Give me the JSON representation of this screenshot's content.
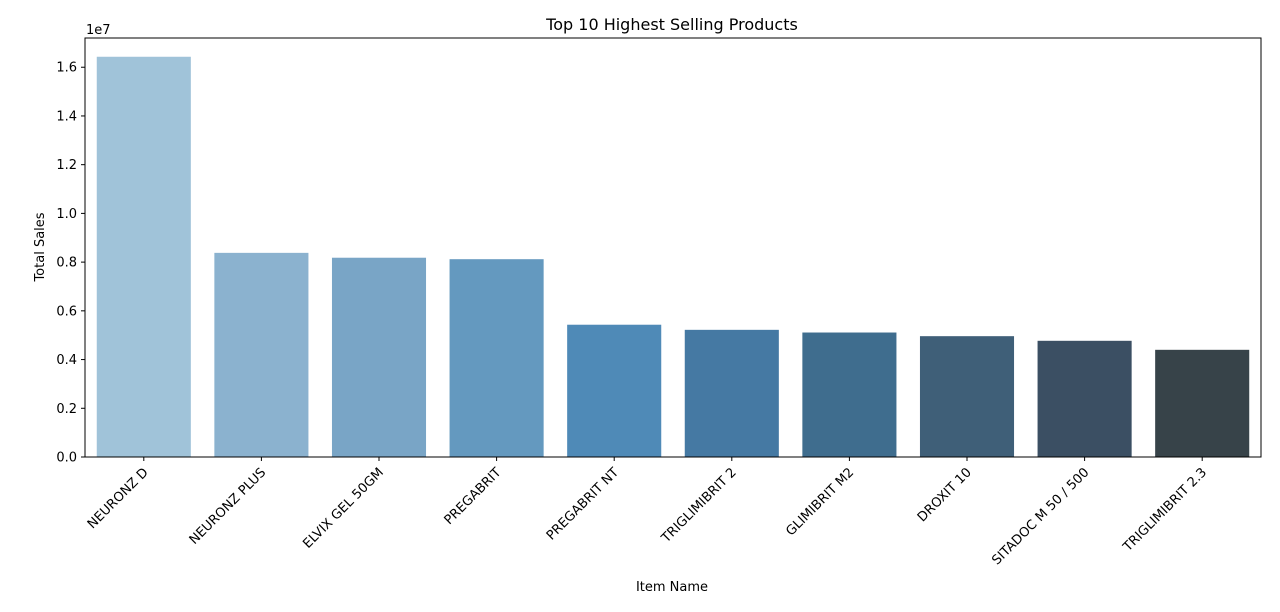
{
  "chart_data": {
    "type": "bar",
    "title": "Top 10 Highest Selling Products",
    "xlabel": "Item Name",
    "ylabel": "Total Sales",
    "y_scale_note": "1e7",
    "y_multiplier": 10000000,
    "ylim": [
      0,
      1.72
    ],
    "yticks": [
      0.0,
      0.2,
      0.4,
      0.6,
      0.8,
      1.0,
      1.2,
      1.4,
      1.6
    ],
    "ytick_labels": [
      "0.0",
      "0.2",
      "0.4",
      "0.6",
      "0.8",
      "1.0",
      "1.2",
      "1.4",
      "1.6"
    ],
    "categories": [
      "NEURONZ D",
      "NEURONZ PLUS",
      "ELVIX GEL 50GM",
      "PREGABRIT",
      "PREGABRIT NT",
      "TRIGLIMIBRIT 2",
      "GLIMIBRIT M2",
      "DROXIT 10",
      "SITADOC M 50 / 500",
      "TRIGLIMIBRIT 2.3"
    ],
    "values": [
      1.643,
      0.838,
      0.818,
      0.812,
      0.543,
      0.522,
      0.511,
      0.496,
      0.477,
      0.44
    ],
    "colors": [
      "#a0c3d9",
      "#8bb2cf",
      "#79a5c6",
      "#6499bf",
      "#4f8ab7",
      "#4579a3",
      "#3f6d8e",
      "#3f5f78",
      "#3b4f63",
      "#374349"
    ],
    "grid": false,
    "legend": "none"
  }
}
